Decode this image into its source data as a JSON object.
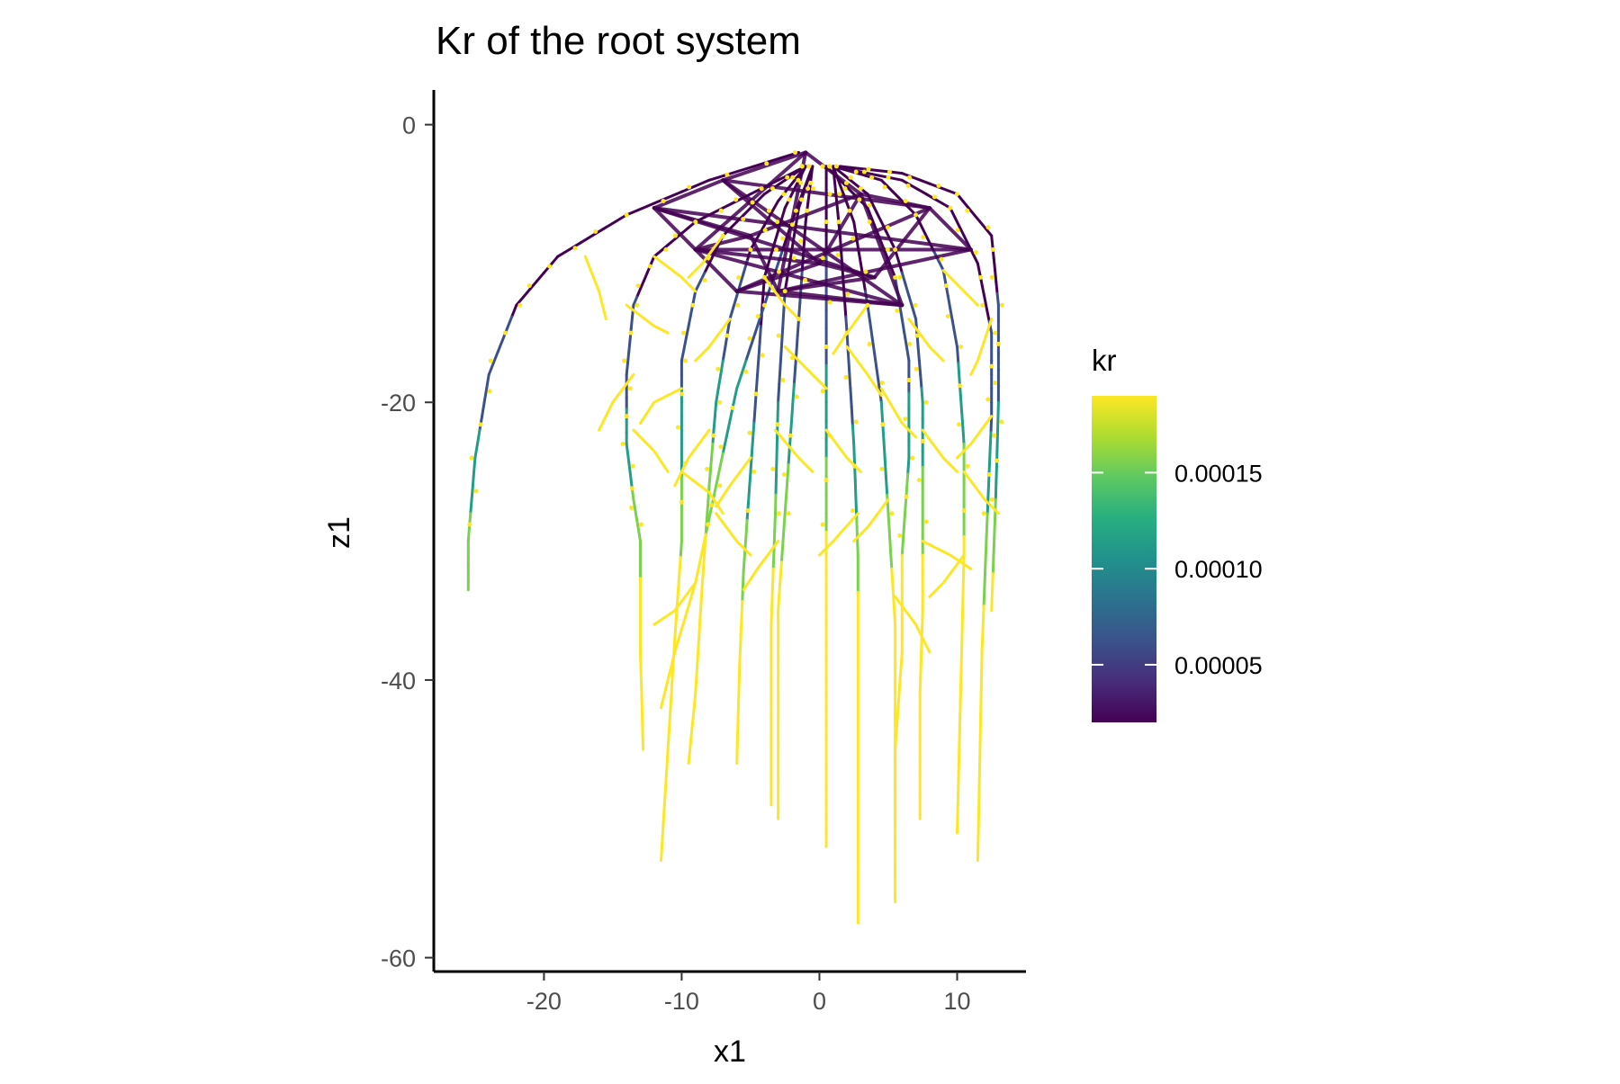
{
  "chart_data": {
    "type": "line",
    "title": "Kr of the root system",
    "xlabel": "x1",
    "ylabel": "z1",
    "xlim": [
      -28,
      15
    ],
    "ylim": [
      -61,
      2.5
    ],
    "x_ticks": [
      -20,
      -10,
      0,
      10
    ],
    "y_ticks": [
      0,
      -20,
      -40,
      -60
    ],
    "grid": false,
    "color_scale": "viridis",
    "colors": {
      "low": "#440154",
      "mid": "#21918c",
      "high": "#fde725"
    },
    "legend": {
      "title": "kr",
      "position": "right",
      "range": [
        2e-05,
        0.00019
      ],
      "ticks": [
        {
          "value": 0.00015,
          "label": "0.00015"
        },
        {
          "value": 0.0001,
          "label": "0.00010"
        },
        {
          "value": 5e-05,
          "label": "0.00005"
        }
      ]
    },
    "series": [
      {
        "points": [
          [
            -1.5,
            -2
          ],
          [
            -8,
            -4
          ],
          [
            -14,
            -6.5
          ],
          [
            -19,
            -9.5
          ],
          [
            -22,
            -13
          ],
          [
            -24,
            -18
          ],
          [
            -25,
            -24
          ],
          [
            -25.5,
            -30
          ],
          [
            -25.5,
            -33.5
          ]
        ]
      },
      {
        "points": [
          [
            -1,
            -3
          ],
          [
            -5,
            -5
          ],
          [
            -9,
            -7
          ],
          [
            -12,
            -9.5
          ],
          [
            -13.5,
            -13
          ],
          [
            -14,
            -18
          ],
          [
            -14,
            -23
          ],
          [
            -13.5,
            -27
          ],
          [
            -13,
            -30
          ],
          [
            -13,
            -38
          ],
          [
            -12.8,
            -45
          ]
        ]
      },
      {
        "points": [
          [
            -1,
            -3
          ],
          [
            -4,
            -5
          ],
          [
            -7,
            -8
          ],
          [
            -9,
            -12
          ],
          [
            -10,
            -17
          ],
          [
            -10,
            -23
          ],
          [
            -10,
            -30
          ],
          [
            -10.5,
            -37
          ],
          [
            -11,
            -45
          ],
          [
            -11.5,
            -53
          ]
        ]
      },
      {
        "points": [
          [
            -1,
            -3
          ],
          [
            -3,
            -5.5
          ],
          [
            -5,
            -9
          ],
          [
            -6.5,
            -14
          ],
          [
            -7.5,
            -20
          ],
          [
            -8,
            -26
          ],
          [
            -8.5,
            -33
          ],
          [
            -9,
            -41
          ],
          [
            -9.5,
            -46
          ]
        ]
      },
      {
        "points": [
          [
            -1,
            -3
          ],
          [
            -2.5,
            -6
          ],
          [
            -4,
            -11
          ],
          [
            -4.5,
            -18
          ],
          [
            -5,
            -25
          ],
          [
            -5.5,
            -32
          ],
          [
            -5.8,
            -39
          ],
          [
            -6,
            -46
          ]
        ]
      },
      {
        "points": [
          [
            -0.5,
            -3
          ],
          [
            -1.5,
            -6
          ],
          [
            -2.5,
            -12
          ],
          [
            -3,
            -20
          ],
          [
            -3.2,
            -28
          ],
          [
            -3.5,
            -36
          ],
          [
            -3.5,
            -44
          ],
          [
            -3.5,
            -49
          ]
        ]
      },
      {
        "points": [
          [
            -0.5,
            -3
          ],
          [
            -1,
            -7
          ],
          [
            -1.5,
            -14
          ],
          [
            -2,
            -21
          ],
          [
            -2.5,
            -28
          ],
          [
            -3,
            -35
          ],
          [
            -3,
            -43
          ],
          [
            -3,
            -50
          ]
        ]
      },
      {
        "points": [
          [
            0.5,
            -3
          ],
          [
            0.5,
            -8
          ],
          [
            0.5,
            -16
          ],
          [
            0.5,
            -24
          ],
          [
            0.5,
            -32
          ],
          [
            0.5,
            -40
          ],
          [
            0.5,
            -46
          ],
          [
            0.5,
            -52
          ]
        ]
      },
      {
        "points": [
          [
            1,
            -3
          ],
          [
            1.5,
            -8
          ],
          [
            2,
            -15
          ],
          [
            2.5,
            -23
          ],
          [
            2.8,
            -31
          ],
          [
            2.8,
            -39
          ],
          [
            2.8,
            -47
          ],
          [
            2.8,
            -57.5
          ]
        ]
      },
      {
        "points": [
          [
            1,
            -3
          ],
          [
            2.5,
            -7
          ],
          [
            3.5,
            -13
          ],
          [
            4.5,
            -20
          ],
          [
            5,
            -28
          ],
          [
            5.5,
            -36
          ],
          [
            5.5,
            -44
          ],
          [
            5.5,
            -56
          ]
        ]
      },
      {
        "points": [
          [
            1,
            -3
          ],
          [
            3.5,
            -5
          ],
          [
            5.5,
            -9
          ],
          [
            7,
            -14
          ],
          [
            7.5,
            -20
          ],
          [
            7.5,
            -27
          ],
          [
            7.5,
            -35
          ],
          [
            7.3,
            -41
          ],
          [
            7.3,
            -50
          ]
        ]
      },
      {
        "points": [
          [
            1,
            -3
          ],
          [
            4.5,
            -4
          ],
          [
            7,
            -6.5
          ],
          [
            9,
            -10.5
          ],
          [
            10,
            -16
          ],
          [
            10.5,
            -23
          ],
          [
            10.5,
            -31
          ],
          [
            10.3,
            -39
          ],
          [
            10,
            -51
          ]
        ]
      },
      {
        "points": [
          [
            1,
            -3
          ],
          [
            6,
            -4
          ],
          [
            9.5,
            -6
          ],
          [
            11.5,
            -10
          ],
          [
            12.5,
            -15
          ],
          [
            12.5,
            -21
          ],
          [
            12.2,
            -28
          ],
          [
            11.8,
            -38
          ],
          [
            11.5,
            -53
          ]
        ]
      },
      {
        "points": [
          [
            1.5,
            -3
          ],
          [
            6,
            -3.5
          ],
          [
            10,
            -5
          ],
          [
            12.5,
            -8
          ],
          [
            13,
            -13
          ],
          [
            13,
            -20
          ],
          [
            12.8,
            -27
          ],
          [
            12.5,
            -35
          ]
        ]
      },
      {
        "points": [
          [
            0.5,
            -3
          ],
          [
            3.5,
            -6
          ],
          [
            5.5,
            -11
          ],
          [
            6.5,
            -17
          ],
          [
            6.5,
            -24
          ],
          [
            6,
            -31
          ],
          [
            6,
            -38
          ],
          [
            5.5,
            -45
          ],
          [
            5.5,
            -50
          ]
        ]
      },
      {
        "points": [
          [
            -0.5,
            -3
          ],
          [
            -2,
            -7
          ],
          [
            -4,
            -13
          ],
          [
            -6,
            -19
          ],
          [
            -7.5,
            -26
          ],
          [
            -9,
            -33
          ],
          [
            -10.5,
            -38
          ],
          [
            -11.5,
            -42
          ]
        ]
      }
    ],
    "laterals": [
      [
        [
          -17,
          -9.5
        ],
        [
          -16,
          -12
        ],
        [
          -15.5,
          -14
        ]
      ],
      [
        [
          -14,
          -13
        ],
        [
          -12,
          -14.5
        ],
        [
          -11,
          -15
        ]
      ],
      [
        [
          -13.5,
          -18
        ],
        [
          -15,
          -20
        ],
        [
          -16,
          -22
        ]
      ],
      [
        [
          -13.5,
          -22
        ],
        [
          -12,
          -23.5
        ],
        [
          -11,
          -25
        ]
      ],
      [
        [
          -10,
          -19
        ],
        [
          -12,
          -20
        ],
        [
          -13,
          -21.5
        ]
      ],
      [
        [
          -10,
          -25
        ],
        [
          -8,
          -26.5
        ],
        [
          -7,
          -28
        ]
      ],
      [
        [
          -8,
          -22
        ],
        [
          -9.5,
          -24
        ],
        [
          -10.5,
          -26
        ]
      ],
      [
        [
          -7.5,
          -28
        ],
        [
          -6,
          -30
        ],
        [
          -5,
          -31
        ]
      ],
      [
        [
          -5,
          -24
        ],
        [
          -6.5,
          -26
        ],
        [
          -7.5,
          -27.5
        ]
      ],
      [
        [
          -3.2,
          -22
        ],
        [
          -1.5,
          -24
        ],
        [
          -0.5,
          -25
        ]
      ],
      [
        [
          -2.5,
          -16
        ],
        [
          -0.5,
          -18
        ],
        [
          0.5,
          -19
        ]
      ],
      [
        [
          -3,
          -30
        ],
        [
          -4.5,
          -32
        ],
        [
          -5.5,
          -33.5
        ]
      ],
      [
        [
          0.5,
          -22
        ],
        [
          2,
          -24
        ],
        [
          3,
          -25
        ]
      ],
      [
        [
          2,
          -16
        ],
        [
          3.5,
          -18
        ],
        [
          4.5,
          -19.5
        ]
      ],
      [
        [
          2.8,
          -28
        ],
        [
          1,
          -30
        ],
        [
          0,
          -31
        ]
      ],
      [
        [
          4.5,
          -19
        ],
        [
          6,
          -21.5
        ],
        [
          7,
          -22.5
        ]
      ],
      [
        [
          5,
          -27
        ],
        [
          3.5,
          -29
        ],
        [
          2.5,
          -30
        ]
      ],
      [
        [
          5.5,
          -34
        ],
        [
          7,
          -36
        ],
        [
          8,
          -38
        ]
      ],
      [
        [
          7.5,
          -22
        ],
        [
          9,
          -24
        ],
        [
          10,
          -25
        ]
      ],
      [
        [
          7.5,
          -30
        ],
        [
          9.5,
          -31
        ],
        [
          11,
          -32
        ]
      ],
      [
        [
          10.5,
          -25
        ],
        [
          12,
          -27
        ],
        [
          13,
          -28
        ]
      ],
      [
        [
          10.5,
          -31
        ],
        [
          9,
          -33
        ],
        [
          8,
          -34
        ]
      ],
      [
        [
          12.5,
          -14
        ],
        [
          11.5,
          -17
        ],
        [
          11,
          -18
        ]
      ],
      [
        [
          12.5,
          -21
        ],
        [
          11,
          -23
        ],
        [
          10,
          -24
        ]
      ],
      [
        [
          6.5,
          -14
        ],
        [
          8,
          -16
        ],
        [
          9,
          -17
        ]
      ],
      [
        [
          -6.5,
          -14
        ],
        [
          -8,
          -16
        ],
        [
          -9,
          -17
        ]
      ],
      [
        [
          -9,
          -33
        ],
        [
          -10.5,
          -35
        ],
        [
          -12,
          -36
        ]
      ],
      [
        [
          -12,
          -9.5
        ],
        [
          -10,
          -11
        ],
        [
          -9,
          -12
        ]
      ],
      [
        [
          3.5,
          -13
        ],
        [
          2,
          -15
        ],
        [
          1,
          -16.5
        ]
      ],
      [
        [
          -4,
          -11
        ],
        [
          -2.5,
          -13
        ],
        [
          -1.5,
          -14
        ]
      ],
      [
        [
          9,
          -10.5
        ],
        [
          10.5,
          -12
        ],
        [
          11.5,
          -13
        ]
      ],
      [
        [
          -7,
          -8
        ],
        [
          -8.5,
          -10
        ],
        [
          -9.5,
          -11
        ]
      ]
    ]
  }
}
